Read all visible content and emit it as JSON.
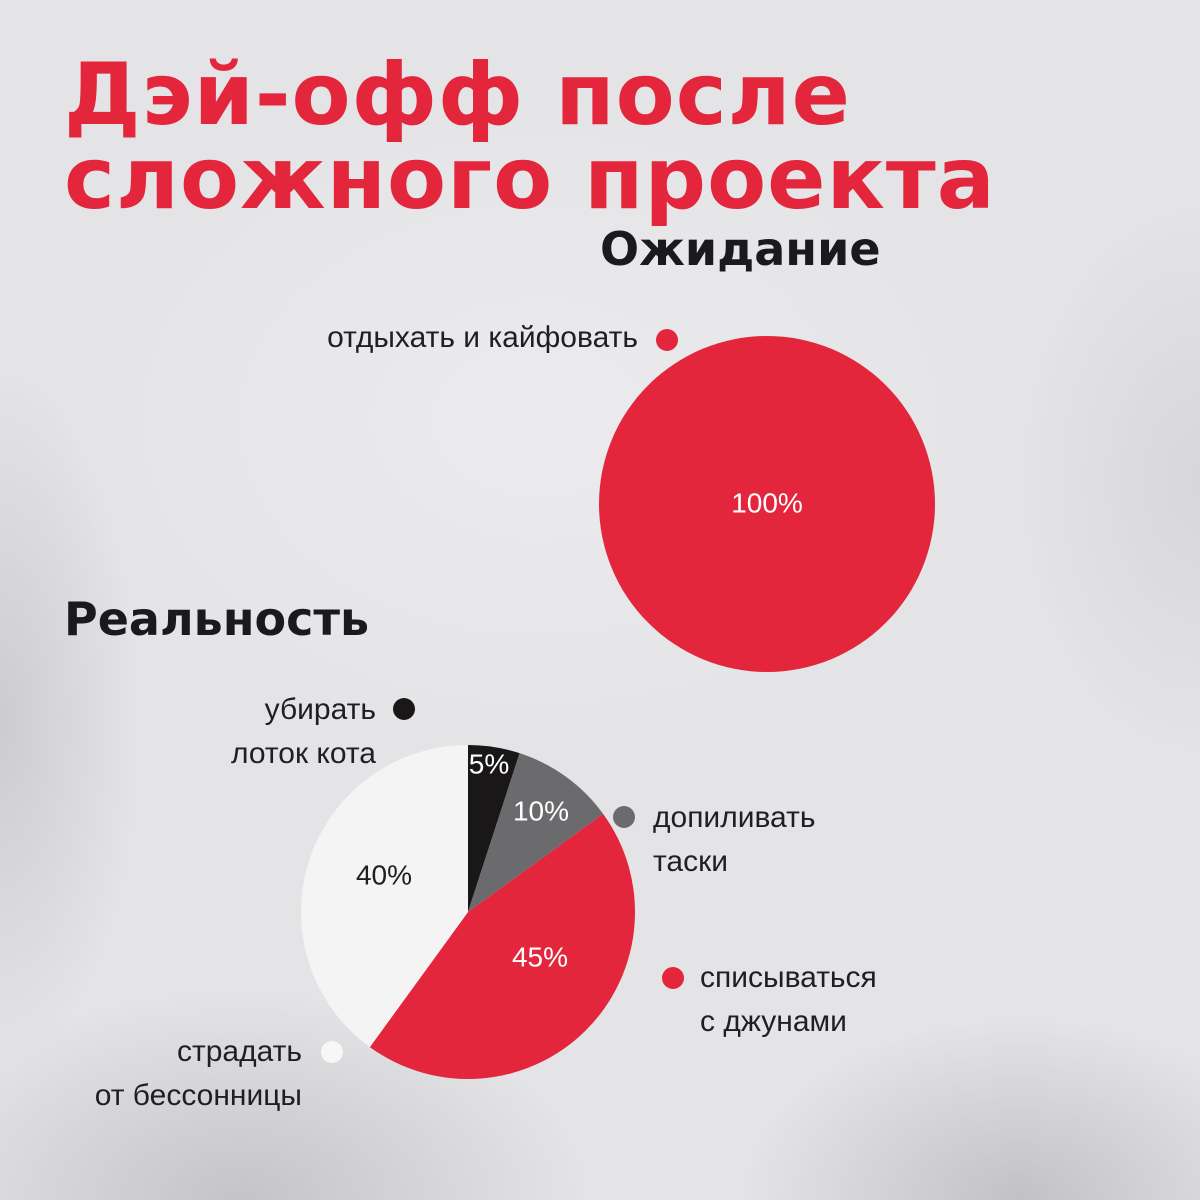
{
  "title": {
    "line1": "Дэй-офф после",
    "line2": "сложного проекта"
  },
  "colors": {
    "red": "#e3263c",
    "black": "#1a1718",
    "gray": "#6b6b6d",
    "white": "#f4f4f4",
    "text": "#1f1f22"
  },
  "chart_data": [
    {
      "type": "pie",
      "title": "Ожидание",
      "slices": [
        {
          "label": "отдыхать и кайфовать",
          "value": 100,
          "value_label": "100%",
          "color": "#e3263c",
          "label_color": "#ffffff"
        }
      ]
    },
    {
      "type": "pie",
      "title": "Реальность",
      "slices": [
        {
          "label": "убирать\nлоток кота",
          "value": 5,
          "value_label": "5%",
          "color": "#1a1718",
          "label_color": "#ffffff"
        },
        {
          "label": "допиливать\nтаски",
          "value": 10,
          "value_label": "10%",
          "color": "#6b6b6d",
          "label_color": "#ffffff"
        },
        {
          "label": "списываться\nс джунами",
          "value": 45,
          "value_label": "45%",
          "color": "#e3263c",
          "label_color": "#ffffff"
        },
        {
          "label": "страдать\nот бессонницы",
          "value": 40,
          "value_label": "40%",
          "color": "#f4f4f4",
          "label_color": "#1f1f22"
        }
      ]
    }
  ]
}
